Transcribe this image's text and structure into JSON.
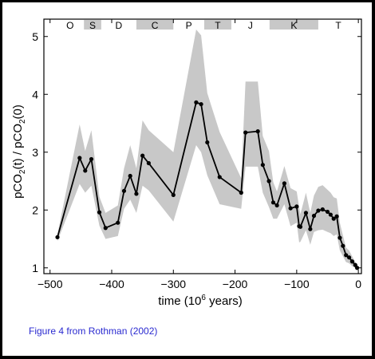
{
  "chart_data": {
    "type": "line",
    "xlabel": "time (10",
    "xlabel_sup": "6",
    "xlabel_end": " years)",
    "ylabel": {
      "pre": "pCO",
      "sub1": "2",
      "mid": "(t) / pCO",
      "sub2": "2",
      "post": "(0)"
    },
    "xlim": [
      -510,
      5
    ],
    "ylim": [
      0.9,
      5.3
    ],
    "xticks": [
      -500,
      -400,
      -300,
      -200,
      -100,
      0
    ],
    "xtick_labels": [
      "−500",
      "−400",
      "−300",
      "−200",
      "−100",
      "0"
    ],
    "yticks": [
      1,
      2,
      3,
      4,
      5
    ],
    "ytick_labels": [
      "1",
      "2",
      "3",
      "4",
      "5"
    ],
    "grid": false,
    "periods": [
      {
        "label": "O",
        "start": -490,
        "end": -445,
        "shaded": false
      },
      {
        "label": "S",
        "start": -445,
        "end": -417,
        "shaded": true
      },
      {
        "label": "D",
        "start": -417,
        "end": -360,
        "shaded": false
      },
      {
        "label": "C",
        "start": -360,
        "end": -300,
        "shaded": true
      },
      {
        "label": "P",
        "start": -300,
        "end": -250,
        "shaded": false
      },
      {
        "label": "T",
        "start": -250,
        "end": -206,
        "shaded": true
      },
      {
        "label": "J",
        "start": -206,
        "end": -144,
        "shaded": false
      },
      {
        "label": "K",
        "start": -144,
        "end": -65,
        "shaded": true
      },
      {
        "label": "T",
        "start": -65,
        "end": 0,
        "shaded": false
      }
    ],
    "series": [
      {
        "x": [
          -488,
          -452,
          -443,
          -433,
          -420,
          -410,
          -390,
          -380,
          -370,
          -360,
          -350,
          -340,
          -300,
          -263,
          -255,
          -245,
          -225,
          -190,
          -183,
          -163,
          -155,
          -145,
          -138,
          -132,
          -120,
          -110,
          -100,
          -96,
          -94,
          -85,
          -78,
          -72,
          -65,
          -58,
          -50,
          -45,
          -40,
          -35,
          -30,
          -25,
          -20,
          -15,
          -10,
          -5,
          -2
        ],
        "y": [
          1.53,
          2.9,
          2.68,
          2.88,
          1.96,
          1.69,
          1.78,
          2.33,
          2.59,
          2.28,
          2.94,
          2.81,
          2.26,
          3.86,
          3.83,
          3.17,
          2.57,
          2.3,
          3.34,
          3.36,
          2.78,
          2.5,
          2.13,
          2.08,
          2.46,
          2.03,
          2.06,
          1.72,
          1.71,
          1.95,
          1.67,
          1.9,
          1.99,
          2.01,
          1.97,
          1.92,
          1.85,
          1.89,
          1.52,
          1.38,
          1.22,
          1.18,
          1.11,
          1.05,
          1.0
        ]
      }
    ],
    "band": {
      "x": [
        -488,
        -452,
        -443,
        -433,
        -420,
        -410,
        -390,
        -380,
        -370,
        -360,
        -350,
        -340,
        -300,
        -263,
        -255,
        -245,
        -225,
        -190,
        -183,
        -163,
        -155,
        -145,
        -138,
        -132,
        -120,
        -110,
        -100,
        -96,
        -94,
        -85,
        -78,
        -72,
        -65,
        -58,
        -50,
        -45,
        -40,
        -35,
        -30,
        -25,
        -20,
        -15,
        -10,
        -5,
        -2
      ],
      "upper": [
        1.58,
        3.48,
        3.02,
        3.38,
        2.23,
        1.95,
        2.08,
        2.72,
        3.12,
        2.72,
        3.55,
        3.38,
        3.0,
        5.12,
        5.02,
        4.02,
        3.35,
        2.55,
        4.22,
        4.22,
        3.28,
        3.02,
        2.48,
        2.32,
        2.76,
        2.38,
        2.32,
        2.05,
        1.93,
        2.3,
        1.95,
        2.25,
        2.4,
        2.43,
        2.35,
        2.3,
        2.22,
        2.2,
        1.78,
        1.56,
        1.35,
        1.3,
        1.2,
        1.1,
        1.02
      ],
      "lower": [
        1.46,
        2.45,
        2.3,
        2.42,
        1.73,
        1.5,
        1.55,
        2.02,
        2.18,
        1.95,
        2.42,
        2.34,
        1.8,
        3.12,
        3.0,
        2.6,
        2.1,
        2.02,
        2.75,
        2.75,
        2.3,
        2.05,
        1.85,
        1.85,
        2.1,
        1.72,
        1.78,
        1.44,
        1.45,
        1.65,
        1.4,
        1.62,
        1.65,
        1.66,
        1.62,
        1.6,
        1.55,
        1.58,
        1.3,
        1.2,
        1.1,
        1.08,
        1.03,
        1.0,
        0.98
      ]
    }
  },
  "caption": "Figure 4 from Rothman (2002)",
  "colors": {
    "band": "#c8c8c8",
    "line": "#000000",
    "period_bar": "#c8c8c8",
    "caption": "#2a2ad0",
    "border": "#000000"
  }
}
